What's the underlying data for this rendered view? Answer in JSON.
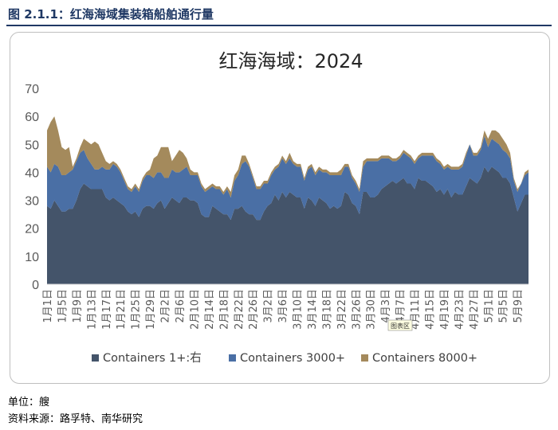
{
  "header": {
    "title": "图 2.1.1：红海海域集装箱船舶通行量"
  },
  "footer": {
    "unit": "单位：艘",
    "source": "资料来源：路孚特、南华研究"
  },
  "chart_tooltip": "图表区",
  "chart_data": {
    "type": "area",
    "title": "红海海域：2024",
    "xlabel": "",
    "ylabel": "",
    "ylim": [
      0,
      70
    ],
    "yticks": [
      0,
      10,
      20,
      30,
      40,
      50,
      60,
      70
    ],
    "grid": false,
    "stacked": true,
    "legend_position": "bottom",
    "x_tick_labels": [
      "1月1日",
      "1月5日",
      "1月9日",
      "1月13日",
      "1月17日",
      "1月21日",
      "1月25日",
      "1月29日",
      "2月2日",
      "2月6日",
      "2月10日",
      "2月14日",
      "2月18日",
      "2月22日",
      "2月26日",
      "3月2日",
      "3月6日",
      "3月10日",
      "3月14日",
      "3月18日",
      "3月22日",
      "3月26日",
      "3月30日",
      "4月3日",
      "4月7日",
      "4月11日",
      "4月15日",
      "4月19日",
      "4月23日",
      "4月27日",
      "5月1日",
      "5月5日",
      "5月9日"
    ],
    "x_start": "2024-01-01",
    "x_end": "2024-05-10",
    "series": [
      {
        "name": "Containers 1+:右",
        "color": "#44546a",
        "values": [
          28,
          27,
          30,
          28,
          26,
          26,
          27,
          27,
          30,
          34,
          36,
          35,
          34,
          34,
          34,
          34,
          31,
          30,
          31,
          30,
          29,
          28,
          26,
          25,
          26,
          24,
          27,
          28,
          28,
          27,
          29,
          30,
          27,
          29,
          31,
          30,
          29,
          31,
          31,
          30,
          30,
          29,
          25,
          24,
          24,
          28,
          27,
          26,
          25,
          25,
          23,
          27,
          27,
          28,
          26,
          25,
          25,
          23,
          23,
          26,
          28,
          29,
          32,
          30,
          33,
          31,
          33,
          32,
          31,
          31,
          27,
          31,
          30,
          28,
          31,
          30,
          29,
          27,
          28,
          27,
          28,
          33,
          32,
          29,
          28,
          25,
          33,
          33,
          31,
          31,
          32,
          34,
          35,
          36,
          37,
          36,
          37,
          38,
          36,
          36,
          34,
          38,
          37,
          37,
          36,
          35,
          33,
          34,
          32,
          34,
          31,
          33,
          32,
          32,
          35,
          38,
          37,
          36,
          38,
          42,
          40,
          42,
          41,
          40,
          38,
          38,
          36,
          31,
          26,
          29,
          32,
          32
        ]
      },
      {
        "name": "Containers 3000+",
        "color": "#4a6fa5",
        "values": [
          14,
          13,
          13,
          14,
          13,
          13,
          13,
          14,
          14,
          13,
          12,
          10,
          9,
          7,
          7,
          8,
          10,
          11,
          12,
          12,
          11,
          9,
          8,
          8,
          9,
          9,
          10,
          11,
          11,
          11,
          11,
          10,
          11,
          9,
          10,
          10,
          11,
          10,
          11,
          9,
          9,
          10,
          10,
          9,
          10,
          7,
          7,
          8,
          7,
          9,
          8,
          10,
          12,
          15,
          18,
          17,
          13,
          11,
          11,
          10,
          8,
          10,
          9,
          12,
          12,
          12,
          12,
          11,
          11,
          11,
          10,
          10,
          12,
          11,
          10,
          10,
          11,
          12,
          11,
          12,
          11,
          9,
          10,
          9,
          8,
          8,
          9,
          11,
          13,
          13,
          12,
          11,
          10,
          9,
          7,
          8,
          8,
          9,
          10,
          9,
          9,
          7,
          9,
          9,
          10,
          11,
          11,
          9,
          9,
          8,
          10,
          8,
          9,
          10,
          11,
          12,
          9,
          10,
          10,
          11,
          9,
          10,
          10,
          10,
          10,
          9,
          9,
          6,
          7,
          7,
          7,
          8
        ]
      },
      {
        "name": "Containers 8000+",
        "color": "#a48a5c",
        "values": [
          13,
          18,
          17,
          13,
          10,
          9,
          9,
          1,
          1,
          2,
          4,
          6,
          7,
          10,
          9,
          5,
          3,
          2,
          1,
          1,
          1,
          1,
          1,
          1,
          1,
          1,
          1,
          1,
          2,
          7,
          6,
          9,
          11,
          11,
          3,
          6,
          8,
          6,
          3,
          2,
          1,
          1,
          1,
          1,
          1,
          1,
          1,
          1,
          1,
          1,
          2,
          2,
          2,
          3,
          2,
          1,
          1,
          1,
          1,
          1,
          1,
          1,
          1,
          1,
          1,
          1,
          2,
          1,
          1,
          1,
          1,
          1,
          1,
          1,
          1,
          1,
          1,
          1,
          1,
          1,
          2,
          1,
          1,
          1,
          1,
          1,
          2,
          1,
          1,
          1,
          1,
          1,
          1,
          1,
          1,
          1,
          1,
          1,
          1,
          1,
          1,
          1,
          1,
          1,
          1,
          1,
          1,
          1,
          1,
          1,
          1,
          1,
          1,
          1,
          1,
          0,
          1,
          1,
          1,
          2,
          3,
          3,
          4,
          4,
          4,
          3,
          2,
          1,
          1,
          0,
          1,
          1
        ]
      }
    ]
  }
}
